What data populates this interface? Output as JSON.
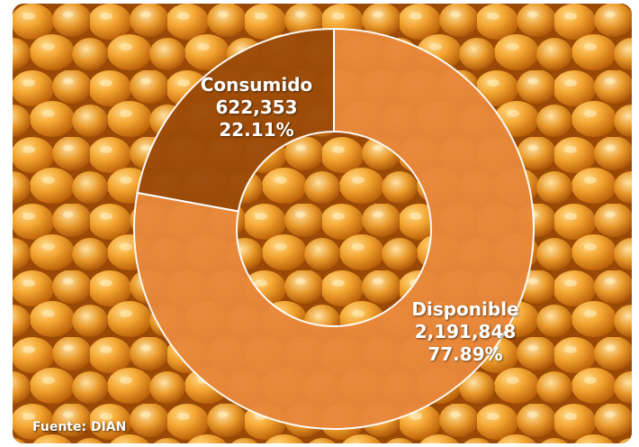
{
  "source_note": "Fuente: DIAN",
  "colors": {
    "disponible": "#e8873a",
    "consumido": "#9c4a08",
    "kernel_light": "#f6b13c",
    "kernel_dark": "#c96a0b"
  },
  "chart_data": {
    "type": "pie",
    "donut": true,
    "title": "",
    "slices": [
      {
        "label": "Consumido",
        "value": 622353,
        "value_text": "622,353",
        "percent_text": "22.11%",
        "color": "#9c4a08"
      },
      {
        "label": "Disponible",
        "value": 2191848,
        "value_text": "2,191,848",
        "percent_text": "77.89%",
        "color": "#e8873a"
      }
    ]
  }
}
